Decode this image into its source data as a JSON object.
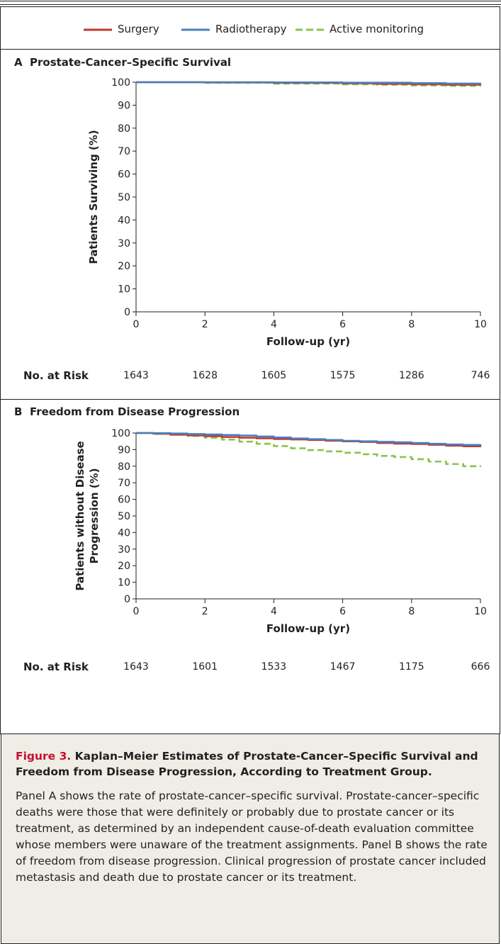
{
  "legend": [
    {
      "name": "Surgery",
      "color": "#c0392b",
      "dash": false
    },
    {
      "name": "Radiotherapy",
      "color": "#4a7fc1",
      "dash": false
    },
    {
      "name": "Active monitoring",
      "color": "#8bc34a",
      "dash": true
    }
  ],
  "chart_data": [
    {
      "type": "line",
      "panel_letter": "A",
      "title": "Prostate-Cancer–Specific Survival",
      "xlabel": "Follow-up (yr)",
      "ylabel": "Patients Surviving (%)",
      "xlim": [
        0,
        10
      ],
      "ylim": [
        0,
        100
      ],
      "xticks": [
        0,
        2,
        4,
        6,
        8,
        10
      ],
      "yticks": [
        0,
        10,
        20,
        30,
        40,
        50,
        60,
        70,
        80,
        90,
        100
      ],
      "grid": false,
      "legend_position": "top",
      "series": [
        {
          "name": "Surgery",
          "color": "#c0392b",
          "x": [
            0,
            2,
            4,
            6,
            7,
            8,
            9,
            10
          ],
          "y": [
            100,
            99.9,
            99.7,
            99.5,
            99.3,
            99.1,
            98.9,
            98.8
          ]
        },
        {
          "name": "Radiotherapy",
          "color": "#4a7fc1",
          "x": [
            0,
            2,
            4,
            6,
            7,
            8,
            9,
            10
          ],
          "y": [
            100,
            100,
            99.9,
            99.8,
            99.8,
            99.6,
            99.4,
            99.3
          ]
        },
        {
          "name": "Active monitoring",
          "color": "#8bc34a",
          "x": [
            0,
            2,
            4,
            6,
            7,
            8,
            9,
            10
          ],
          "y": [
            100,
            99.8,
            99.4,
            99.1,
            98.9,
            98.6,
            98.4,
            98.2
          ]
        }
      ],
      "risk_label": "No. at Risk",
      "at_risk": [
        "1643",
        "1628",
        "1605",
        "1575",
        "1286",
        "746"
      ]
    },
    {
      "type": "line",
      "panel_letter": "B",
      "title": "Freedom from Disease Progression",
      "xlabel": "Follow-up (yr)",
      "ylabel_lines": [
        "Patients without Disease",
        "Progression (%)"
      ],
      "xlim": [
        0,
        10
      ],
      "ylim": [
        0,
        100
      ],
      "xticks": [
        0,
        2,
        4,
        6,
        8,
        10
      ],
      "yticks": [
        0,
        10,
        20,
        30,
        40,
        50,
        60,
        70,
        80,
        90,
        100
      ],
      "grid": false,
      "legend_position": "top",
      "series": [
        {
          "name": "Surgery",
          "color": "#c0392b",
          "x": [
            0,
            0.5,
            1,
            1.5,
            2,
            2.5,
            3,
            3.5,
            4,
            4.5,
            5,
            5.5,
            6,
            6.5,
            7,
            7.5,
            8,
            8.5,
            9,
            9.5,
            10
          ],
          "y": [
            100,
            99.6,
            99.0,
            98.6,
            98.1,
            97.6,
            97.2,
            96.8,
            96.4,
            96.1,
            95.8,
            95.4,
            95.0,
            94.6,
            94.0,
            93.6,
            93.4,
            92.9,
            92.4,
            92.0,
            91.5
          ]
        },
        {
          "name": "Radiotherapy",
          "color": "#4a7fc1",
          "x": [
            0,
            0.5,
            1,
            1.5,
            2,
            2.5,
            3,
            3.5,
            4,
            4.5,
            5,
            5.5,
            6,
            6.5,
            7,
            7.5,
            8,
            8.5,
            9,
            9.5,
            10
          ],
          "y": [
            100,
            99.9,
            99.7,
            99.4,
            99.1,
            98.8,
            98.5,
            97.9,
            97.3,
            96.7,
            96.3,
            95.8,
            95.3,
            95.0,
            94.7,
            94.4,
            94.0,
            93.5,
            93.1,
            92.8,
            92.5
          ]
        },
        {
          "name": "Active monitoring",
          "color": "#8bc34a",
          "x": [
            0,
            0.5,
            1,
            1.5,
            2,
            2.5,
            3,
            3.5,
            4,
            4.5,
            5,
            5.5,
            6,
            6.5,
            7,
            7.5,
            8,
            8.5,
            9,
            9.5,
            10
          ],
          "y": [
            100,
            99.5,
            99.0,
            98.2,
            97.2,
            96.0,
            94.8,
            93.5,
            92.1,
            90.8,
            89.7,
            88.9,
            88.1,
            87.2,
            86.2,
            85.5,
            84.2,
            82.8,
            81.3,
            80.0,
            79.6
          ]
        }
      ],
      "risk_label": "No. at Risk",
      "at_risk": [
        "1643",
        "1601",
        "1533",
        "1467",
        "1175",
        "666"
      ]
    }
  ],
  "caption": {
    "figure_label": "Figure 3.",
    "title": "Kaplan–Meier Estimates of Prostate-Cancer–Specific Survival and Freedom from Disease Progression, According to Treatment Group.",
    "body": "Panel A shows the rate of prostate-cancer–specific survival. Prostate-cancer–specific deaths were those that were definitely or probably due to prostate cancer or its treatment, as determined by an independent cause-of-death evaluation committee whose members were unaware of the treatment assignments. Panel B shows the rate of freedom from disease progression. Clinical progression of prostate cancer included metastasis and death due to prostate cancer or its treatment."
  }
}
